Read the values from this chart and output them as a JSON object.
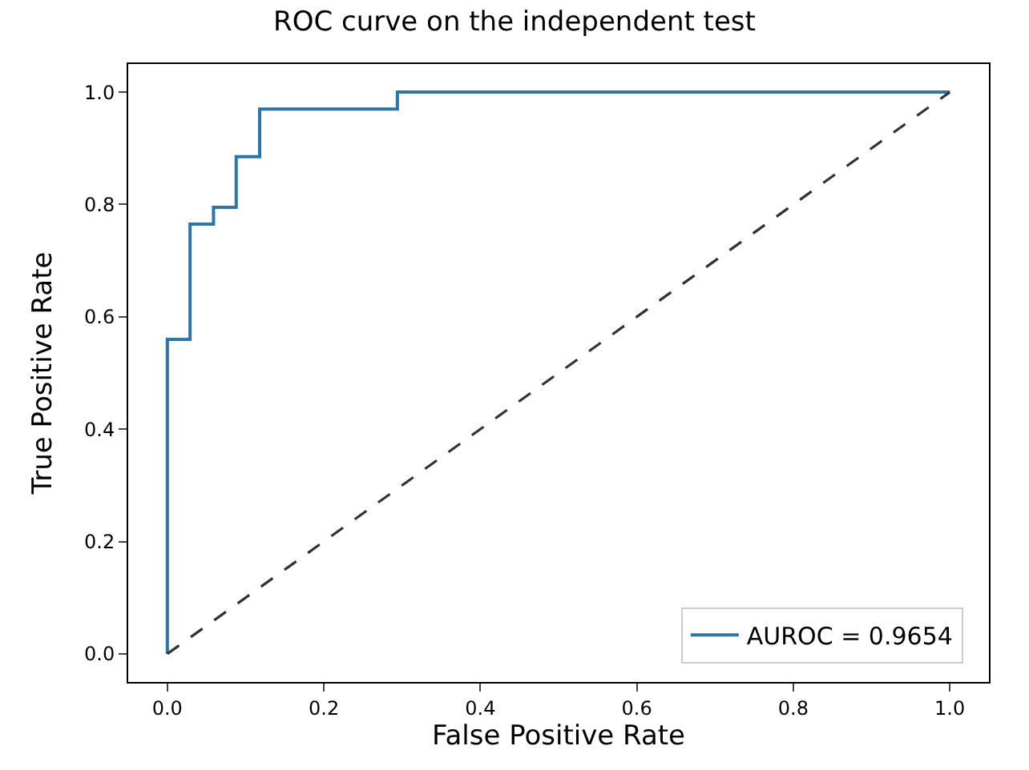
{
  "chart_data": {
    "type": "step",
    "title": "ROC curve on the independent test",
    "xlabel": "False Positive Rate",
    "ylabel": "True Positive Rate",
    "series": [
      {
        "name": "AUROC = 0.9654",
        "color": "#2e75a6",
        "x": [
          0,
          0,
          0.029,
          0.029,
          0.059,
          0.059,
          0.088,
          0.088,
          0.118,
          0.118,
          0.294,
          0.294,
          1.0
        ],
        "values": [
          0,
          0.56,
          0.56,
          0.765,
          0.765,
          0.795,
          0.795,
          0.885,
          0.885,
          0.97,
          0.97,
          1.0,
          1.0
        ]
      },
      {
        "type": "line",
        "color": "#333333",
        "line_style": "dashed",
        "x": [
          0,
          1
        ],
        "values": [
          0,
          1
        ]
      }
    ],
    "xlim": [
      -0.05,
      1.05
    ],
    "ylim": [
      -0.05,
      1.05
    ],
    "xticks": [
      {
        "value": 0,
        "label": "0.0"
      },
      0.2,
      0.4,
      0.6,
      0.8,
      {
        "value": 1,
        "label": "1.0"
      }
    ],
    "yticks": [
      {
        "value": 0,
        "label": "0.0"
      },
      0.2,
      0.4,
      0.6,
      0.8,
      {
        "value": 1,
        "label": "1.0"
      }
    ],
    "legend": "bottom right"
  }
}
